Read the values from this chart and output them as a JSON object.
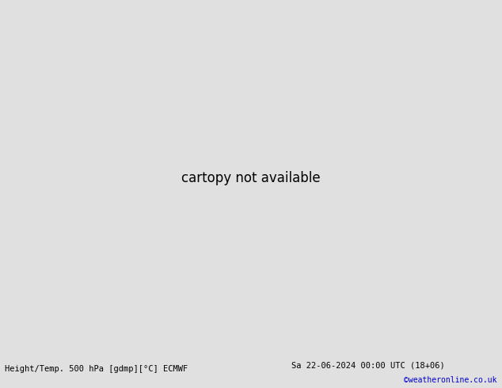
{
  "title_left": "Height/Temp. 500 hPa [gdmp][°C] ECMWF",
  "title_right": "Sa 22-06-2024 00:00 UTC (18+06)",
  "credit": "©weatheronline.co.uk",
  "bg_color": "#e0e0e0",
  "ocean_color": "#d8d8d8",
  "land_sa_color": "#b8e8a0",
  "land_other_color": "#d0d0d0",
  "black": "#000000",
  "red": "#ff0000",
  "orange": "#ff8800",
  "cyan": "#00cccc",
  "green": "#88cc00",
  "blue": "#0000ff",
  "bottom_text_color": "#000000",
  "credit_color": "#0000cc",
  "fig_width": 6.34,
  "fig_height": 4.9,
  "dpi": 100,
  "lon_min": -110,
  "lon_max": -10,
  "lat_min": -60,
  "lat_max": 15
}
